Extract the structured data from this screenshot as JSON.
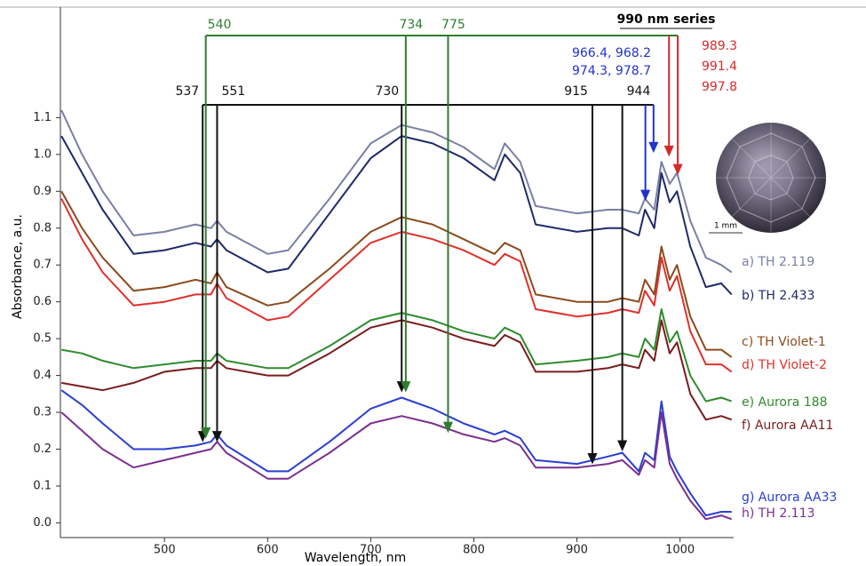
{
  "chart_data": {
    "type": "line",
    "x_label": "Wavelength, nm",
    "y_label": "Absorbance, a.u.",
    "xlim": [
      399,
      1052
    ],
    "ylim": [
      -0.04,
      1.4
    ],
    "xticks": [
      500,
      600,
      700,
      800,
      900,
      1000
    ],
    "yticks": [
      {
        "value": 0,
        "label": "0.0"
      },
      0.1,
      0.2,
      0.3,
      0.4,
      0.5,
      0.6,
      0.7,
      0.8,
      0.9,
      {
        "value": 1,
        "label": "1.0"
      },
      1.1
    ],
    "x": [
      400,
      420,
      440,
      470,
      500,
      530,
      545,
      551,
      560,
      600,
      620,
      660,
      700,
      730,
      760,
      790,
      820,
      830,
      845,
      860,
      900,
      930,
      944,
      960,
      966,
      975,
      982,
      990,
      997,
      1010,
      1025,
      1040,
      1050
    ],
    "series": [
      {
        "name": "a) TH 2.119",
        "color": "#7a7fa3",
        "values": [
          1.12,
          1.0,
          0.9,
          0.78,
          0.79,
          0.81,
          0.8,
          0.82,
          0.79,
          0.73,
          0.74,
          0.88,
          1.03,
          1.08,
          1.06,
          1.02,
          0.96,
          1.03,
          0.98,
          0.86,
          0.84,
          0.85,
          0.85,
          0.84,
          0.88,
          0.85,
          0.98,
          0.92,
          0.95,
          0.82,
          0.72,
          0.7,
          0.68
        ]
      },
      {
        "name": "b) TH 2.433",
        "color": "#1f2a6b",
        "values": [
          1.05,
          0.95,
          0.85,
          0.73,
          0.74,
          0.76,
          0.75,
          0.77,
          0.74,
          0.68,
          0.69,
          0.84,
          0.99,
          1.05,
          1.03,
          0.99,
          0.93,
          1.0,
          0.95,
          0.81,
          0.79,
          0.8,
          0.8,
          0.78,
          0.85,
          0.8,
          0.95,
          0.87,
          0.9,
          0.75,
          0.64,
          0.65,
          0.62
        ]
      },
      {
        "name": "c) TH Violet-1",
        "color": "#8b4a1c",
        "values": [
          0.9,
          0.8,
          0.72,
          0.63,
          0.64,
          0.66,
          0.65,
          0.68,
          0.64,
          0.59,
          0.6,
          0.69,
          0.79,
          0.83,
          0.81,
          0.77,
          0.73,
          0.76,
          0.74,
          0.62,
          0.6,
          0.6,
          0.61,
          0.6,
          0.66,
          0.62,
          0.75,
          0.66,
          0.7,
          0.56,
          0.47,
          0.47,
          0.45
        ]
      },
      {
        "name": "d) TH Violet-2",
        "color": "#e0302a",
        "values": [
          0.88,
          0.77,
          0.68,
          0.59,
          0.6,
          0.62,
          0.62,
          0.65,
          0.61,
          0.55,
          0.56,
          0.66,
          0.76,
          0.79,
          0.77,
          0.74,
          0.7,
          0.73,
          0.71,
          0.58,
          0.56,
          0.57,
          0.58,
          0.57,
          0.63,
          0.59,
          0.72,
          0.63,
          0.67,
          0.52,
          0.43,
          0.43,
          0.41
        ]
      },
      {
        "name": "e) Aurora 188",
        "color": "#2e8b2e",
        "values": [
          0.47,
          0.46,
          0.44,
          0.42,
          0.43,
          0.44,
          0.44,
          0.46,
          0.44,
          0.42,
          0.42,
          0.48,
          0.55,
          0.57,
          0.55,
          0.52,
          0.5,
          0.53,
          0.51,
          0.43,
          0.44,
          0.45,
          0.46,
          0.45,
          0.5,
          0.47,
          0.58,
          0.49,
          0.52,
          0.4,
          0.33,
          0.34,
          0.33
        ]
      },
      {
        "name": "f) Aurora AA11",
        "color": "#7a1c1c",
        "values": [
          0.38,
          0.37,
          0.36,
          0.38,
          0.41,
          0.42,
          0.42,
          0.44,
          0.42,
          0.4,
          0.4,
          0.46,
          0.53,
          0.55,
          0.53,
          0.5,
          0.48,
          0.51,
          0.49,
          0.41,
          0.41,
          0.42,
          0.43,
          0.42,
          0.47,
          0.44,
          0.55,
          0.46,
          0.49,
          0.35,
          0.28,
          0.29,
          0.28
        ]
      },
      {
        "name": "g) Aurora AA33",
        "color": "#2a3fd0",
        "values": [
          0.36,
          0.32,
          0.27,
          0.2,
          0.2,
          0.21,
          0.22,
          0.24,
          0.21,
          0.14,
          0.14,
          0.22,
          0.31,
          0.34,
          0.31,
          0.27,
          0.24,
          0.25,
          0.23,
          0.17,
          0.16,
          0.18,
          0.19,
          0.14,
          0.19,
          0.17,
          0.33,
          0.18,
          0.14,
          0.08,
          0.02,
          0.03,
          0.03
        ]
      },
      {
        "name": "h) TH 2.113",
        "color": "#7a2f8f",
        "values": [
          0.3,
          0.25,
          0.2,
          0.15,
          0.17,
          0.19,
          0.2,
          0.22,
          0.19,
          0.12,
          0.12,
          0.19,
          0.27,
          0.29,
          0.27,
          0.24,
          0.22,
          0.23,
          0.21,
          0.15,
          0.15,
          0.16,
          0.17,
          0.13,
          0.17,
          0.15,
          0.3,
          0.16,
          0.12,
          0.06,
          0.01,
          0.02,
          0.01
        ]
      }
    ],
    "arrow_groups": [
      {
        "color": "#111111",
        "arrows": [
          {
            "label": 537,
            "tip": 0.225
          },
          {
            "label": 551,
            "tip": 0.225
          },
          {
            "label": 730,
            "tip": 0.36
          },
          {
            "label": 915,
            "tip": 0.165
          },
          {
            "label": 944,
            "tip": 0.2
          }
        ]
      },
      {
        "color": "#2e7d2e",
        "arrows": [
          {
            "label": 540,
            "tip": 0.235
          },
          {
            "label": 734,
            "tip": 0.36
          },
          {
            "label": 775,
            "tip": 0.25
          }
        ]
      },
      {
        "color": "#2233cc",
        "labels": [
          "966.4, 968.2",
          "974.3, 978.7"
        ],
        "arrows": [
          {
            "x": 966.4,
            "tip": 0.88
          },
          {
            "x": 974.3,
            "tip": 1.01
          }
        ]
      },
      {
        "color": "#d42a2a",
        "labels": [
          989.3,
          991.4,
          997.8
        ],
        "arrows": [
          {
            "x": 989.3,
            "tip": 1.0
          },
          {
            "x": 997.8,
            "tip": 0.95
          }
        ]
      }
    ],
    "series_heading": "990 nm series",
    "photo_scale": "1 mm"
  }
}
